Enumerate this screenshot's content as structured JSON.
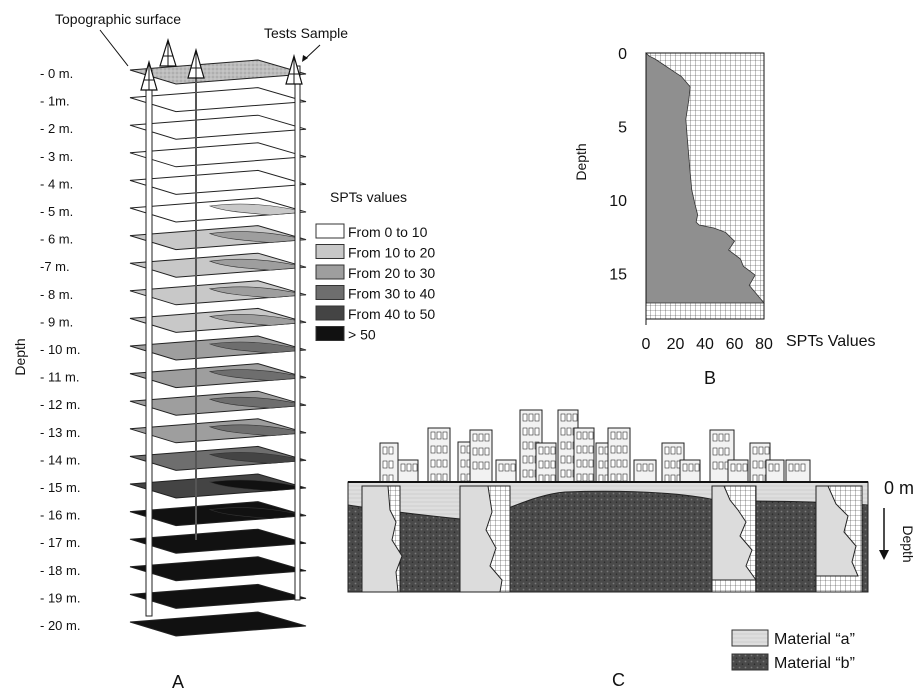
{
  "panel_a": {
    "caption": "A",
    "callout_surface": "Topographic surface",
    "callout_tests": "Tests Sample",
    "axis_label": "Depth",
    "depth_labels": [
      "- 0 m.",
      "- 1m.",
      "- 2 m.",
      "- 3 m.",
      "- 4 m.",
      "- 5 m.",
      "- 6 m.",
      "-7 m.",
      "- 8 m.",
      "- 9 m.",
      "- 10 m.",
      "- 11 m.",
      "- 12 m.",
      "- 13 m.",
      "- 14 m.",
      "- 15 m.",
      "- 16 m.",
      "- 17 m.",
      "- 18 m.",
      "- 19 m.",
      "- 20 m."
    ],
    "legend": {
      "title": "SPTs values",
      "items": [
        {
          "label": "From 0 to 10",
          "color": "#ffffff"
        },
        {
          "label": "From 10 to 20",
          "color": "#c8c8c8"
        },
        {
          "label": "From 20 to 30",
          "color": "#9e9e9e"
        },
        {
          "label": "From 30 to 40",
          "color": "#6e6e6e"
        },
        {
          "label": "From 40 to 50",
          "color": "#444444"
        },
        {
          "label": "> 50",
          "color": "#111111"
        }
      ]
    }
  },
  "panel_b": {
    "caption": "B",
    "chart_data": {
      "type": "area",
      "xlabel": "SPTs Values",
      "ylabel": "Depth",
      "xlim": [
        0,
        80
      ],
      "ylim": [
        0,
        17
      ],
      "y_inverted": true,
      "x_ticks": [
        0,
        20,
        40,
        60,
        80
      ],
      "y_ticks": [
        0,
        5,
        10,
        15
      ],
      "grid": true,
      "series": [
        {
          "x": [
            0,
            2,
            6,
            12,
            18,
            24,
            30,
            29,
            27,
            28,
            29,
            30,
            31,
            33,
            35,
            34,
            36,
            46,
            54,
            60,
            56,
            64,
            66,
            74,
            70,
            80
          ],
          "y": [
            0,
            0.2,
            0.4,
            0.8,
            1.2,
            1.6,
            2.3,
            3.2,
            4.5,
            5.8,
            7.0,
            8.2,
            9.3,
            10.2,
            11.0,
            11.5,
            11.7,
            11.9,
            12.2,
            12.8,
            13.4,
            14.0,
            14.5,
            15.1,
            15.8,
            17.0
          ],
          "color": "#8f8f8f"
        }
      ]
    }
  },
  "panel_c": {
    "caption": "C",
    "surface_label": "0 m",
    "depth_label": "Depth",
    "legend": [
      {
        "label": "Material “a”",
        "color": "#dcdcdc"
      },
      {
        "label": "Material “b”",
        "color": "#474747"
      }
    ]
  }
}
